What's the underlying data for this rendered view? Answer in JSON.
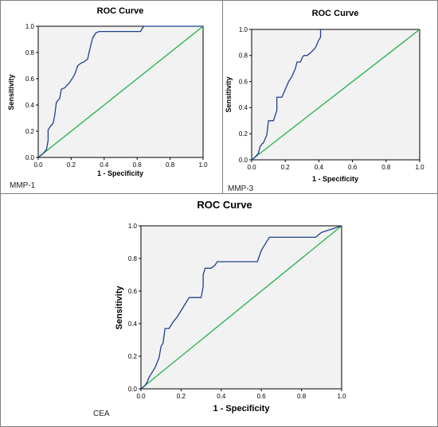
{
  "chart_data": [
    {
      "type": "line",
      "title": "ROC Curve",
      "xlabel": "1 - Specificity",
      "ylabel": "Sensitivity",
      "caption": "MMP-1",
      "xlim": [
        0,
        1
      ],
      "ylim": [
        0,
        1
      ],
      "x_ticks": [
        "0.0",
        "0.2",
        "0.4",
        "0.6",
        "0.8",
        "1.0"
      ],
      "y_ticks": [
        "0.0",
        "0.2",
        "0.4",
        "0.6",
        "0.8",
        "1.0"
      ],
      "grid": false,
      "colors": {
        "roc": "#1f3f8f",
        "reference": "#22b24c",
        "plot_bg": "#f2f2f2"
      },
      "series": [
        {
          "x": [
            0,
            0.03,
            0.05,
            0.06,
            0.06,
            0.07,
            0.09,
            0.1,
            0.11,
            0.13,
            0.14,
            0.16,
            0.19,
            0.22,
            0.24,
            0.26,
            0.28,
            0.3,
            0.31,
            0.32,
            0.33,
            0.35,
            0.37,
            0.62,
            0.64,
            1.0
          ],
          "y": [
            0,
            0.03,
            0.06,
            0.13,
            0.21,
            0.23,
            0.26,
            0.32,
            0.42,
            0.45,
            0.52,
            0.53,
            0.57,
            0.63,
            0.7,
            0.72,
            0.73,
            0.75,
            0.81,
            0.86,
            0.91,
            0.95,
            0.96,
            0.96,
            1.0,
            1.0
          ]
        },
        {
          "x": [
            0,
            1
          ],
          "y": [
            0,
            1
          ]
        }
      ]
    },
    {
      "type": "line",
      "title": "ROC Curve",
      "xlabel": "1 - Specificity",
      "ylabel": "Sensitivity",
      "caption": "MMP-3",
      "xlim": [
        0,
        1
      ],
      "ylim": [
        0,
        1
      ],
      "x_ticks": [
        "0.0",
        "0.2",
        "0.4",
        "0.6",
        "0.8",
        "1.0"
      ],
      "y_ticks": [
        "0.0",
        "0.2",
        "0.4",
        "0.6",
        "0.8",
        "1.0"
      ],
      "grid": false,
      "colors": {
        "roc": "#1f3f8f",
        "reference": "#22b24c",
        "plot_bg": "#f2f2f2"
      },
      "series": [
        {
          "x": [
            0,
            0.02,
            0.04,
            0.05,
            0.06,
            0.07,
            0.09,
            0.1,
            0.13,
            0.15,
            0.15,
            0.18,
            0.2,
            0.22,
            0.24,
            0.26,
            0.27,
            0.29,
            0.3,
            0.31,
            0.33,
            0.35,
            0.38,
            0.39,
            0.4,
            0.41,
            0.41
          ],
          "y": [
            0,
            0.02,
            0.05,
            0.1,
            0.12,
            0.13,
            0.19,
            0.3,
            0.3,
            0.38,
            0.48,
            0.48,
            0.54,
            0.6,
            0.64,
            0.7,
            0.75,
            0.75,
            0.78,
            0.8,
            0.8,
            0.82,
            0.86,
            0.89,
            0.92,
            0.94,
            1.0
          ]
        },
        {
          "x": [
            0,
            1
          ],
          "y": [
            0,
            1
          ]
        }
      ]
    },
    {
      "type": "line",
      "title": "ROC Curve",
      "xlabel": "1 - Specificity",
      "ylabel": "Sensitivity",
      "caption": "CEA",
      "xlim": [
        0,
        1
      ],
      "ylim": [
        0,
        1
      ],
      "x_ticks": [
        "0.0",
        "0.2",
        "0.4",
        "0.6",
        "0.8",
        "1.0"
      ],
      "y_ticks": [
        "0.0",
        "0.2",
        "0.4",
        "0.6",
        "0.8",
        "1.0"
      ],
      "grid": false,
      "colors": {
        "roc": "#1f3f8f",
        "reference": "#22b24c",
        "plot_bg": "#f2f2f2"
      },
      "series": [
        {
          "x": [
            0,
            0.02,
            0.03,
            0.04,
            0.05,
            0.06,
            0.07,
            0.09,
            0.1,
            0.11,
            0.12,
            0.14,
            0.16,
            0.18,
            0.2,
            0.22,
            0.24,
            0.26,
            0.28,
            0.3,
            0.31,
            0.31,
            0.32,
            0.33,
            0.35,
            0.37,
            0.38,
            0.58,
            0.6,
            0.62,
            0.64,
            0.87,
            0.9,
            1.0
          ],
          "y": [
            0,
            0.02,
            0.04,
            0.07,
            0.09,
            0.11,
            0.13,
            0.19,
            0.26,
            0.28,
            0.37,
            0.37,
            0.41,
            0.44,
            0.48,
            0.52,
            0.56,
            0.56,
            0.56,
            0.56,
            0.63,
            0.7,
            0.74,
            0.74,
            0.74,
            0.76,
            0.78,
            0.78,
            0.85,
            0.89,
            0.93,
            0.93,
            0.96,
            1.0
          ]
        },
        {
          "x": [
            0,
            1
          ],
          "y": [
            0,
            1
          ]
        }
      ]
    }
  ]
}
